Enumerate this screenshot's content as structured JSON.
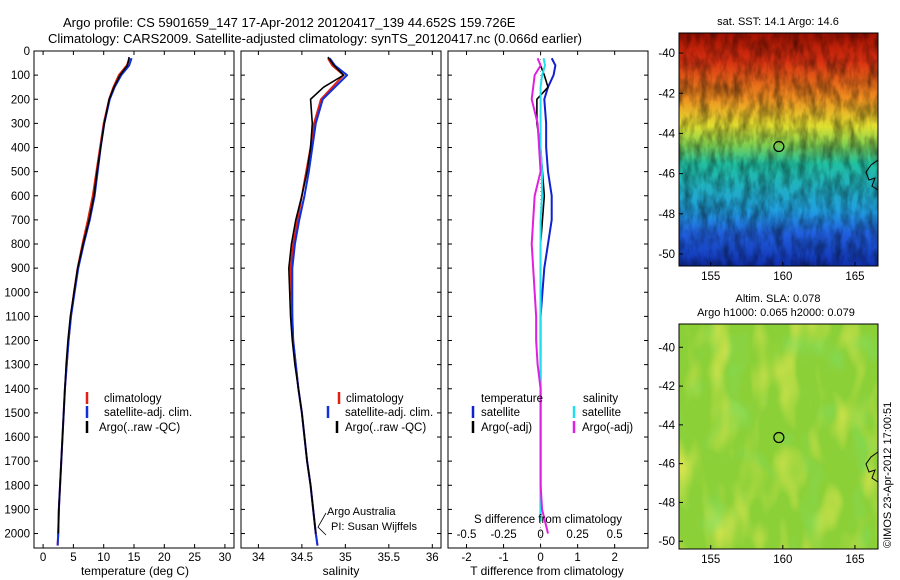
{
  "header": {
    "line1": "Argo profile: CS 5901659_147 17-Apr-2012 20120417_139 44.652S 159.726E",
    "line2": "Climatology: CARS2009. Satellite-adjusted climatology: synTS_20120417.nc (0.066d earlier)"
  },
  "colors": {
    "climatology": "#e02010",
    "satellite_adj": "#1030e0",
    "argo": "#000000",
    "temp_satellite": "#1020d0",
    "sal_satellite": "#20e0f0",
    "sal_argo_adj": "#e020e0"
  },
  "chart_data": [
    {
      "id": "temperature",
      "type": "line",
      "xlabel": "temperature (deg C)",
      "ylabel": "",
      "xlim": [
        -1.5,
        31.5
      ],
      "ylim": [
        2060,
        0
      ],
      "xticks": [
        0,
        5,
        10,
        15,
        20,
        25,
        30
      ],
      "yticks": [
        0,
        100,
        200,
        300,
        400,
        500,
        600,
        700,
        800,
        900,
        1000,
        1100,
        1200,
        1300,
        1400,
        1500,
        1600,
        1700,
        1800,
        1900,
        2000
      ],
      "legend": {
        "placement": "lower-middle",
        "entries": [
          "climatology",
          "satellite-adj. clim.",
          "Argo(..raw -QC)"
        ]
      },
      "series": [
        {
          "name": "climatology",
          "color_key": "climatology",
          "depth": [
            30,
            60,
            100,
            150,
            200,
            300,
            400,
            500,
            600,
            700,
            800,
            900,
            1000,
            1100,
            1200,
            1300,
            1400,
            1500,
            1600,
            1700,
            1800,
            1900,
            2000,
            2050
          ],
          "values": [
            14.3,
            13.8,
            12.5,
            11.6,
            10.9,
            10.0,
            9.4,
            8.8,
            8.2,
            7.4,
            6.5,
            5.7,
            5.1,
            4.6,
            4.2,
            3.9,
            3.6,
            3.4,
            3.2,
            3.0,
            2.8,
            2.6,
            2.5,
            2.4
          ]
        },
        {
          "name": "satellite-adj. clim.",
          "color_key": "satellite_adj",
          "depth": [
            30,
            60,
            100,
            150,
            200,
            300,
            400,
            500,
            600,
            700,
            800,
            900,
            1000,
            1100,
            1200,
            1300,
            1400,
            1500,
            1600,
            1700,
            1800,
            1900,
            2000,
            2050
          ],
          "values": [
            14.6,
            14.2,
            12.9,
            11.8,
            11.0,
            10.1,
            9.5,
            9.0,
            8.5,
            7.7,
            6.7,
            5.8,
            5.2,
            4.6,
            4.2,
            3.9,
            3.6,
            3.4,
            3.2,
            3.0,
            2.8,
            2.6,
            2.5,
            2.4
          ]
        },
        {
          "name": "Argo(..raw -QC)",
          "color_key": "argo",
          "depth": [
            25,
            60,
            100,
            150,
            200,
            300,
            400,
            500,
            600,
            700,
            800,
            900,
            1000,
            1100,
            1200,
            1300,
            1400,
            1500,
            1600,
            1700,
            1800,
            1900,
            2000
          ],
          "values": [
            14.2,
            13.9,
            12.7,
            11.7,
            10.9,
            10.1,
            9.5,
            8.9,
            8.4,
            7.6,
            6.6,
            5.7,
            5.1,
            4.5,
            4.1,
            3.8,
            3.6,
            3.4,
            3.2,
            3.0,
            2.8,
            2.6,
            2.5
          ]
        }
      ]
    },
    {
      "id": "salinity",
      "type": "line",
      "xlabel": "salinity",
      "ylabel": "",
      "xlim": [
        33.8,
        36.1
      ],
      "ylim": [
        2060,
        0
      ],
      "xticks": [
        34,
        34.5,
        35,
        35.5,
        36
      ],
      "legend": {
        "placement": "lower-right",
        "entries": [
          "climatology",
          "satellite-adj. clim.",
          "Argo(..raw -QC)"
        ]
      },
      "annotation": [
        "Argo Australia",
        "PI: Susan Wijffels"
      ],
      "series": [
        {
          "name": "climatology",
          "color_key": "climatology",
          "depth": [
            30,
            60,
            100,
            150,
            200,
            300,
            400,
            500,
            600,
            700,
            800,
            900,
            1000,
            1100,
            1200,
            1300,
            1400,
            1500,
            1600,
            1700,
            1800,
            1900,
            2000,
            2050
          ],
          "values": [
            34.8,
            34.85,
            34.98,
            34.85,
            34.72,
            34.64,
            34.6,
            34.55,
            34.5,
            34.45,
            34.4,
            34.37,
            34.38,
            34.39,
            34.4,
            34.43,
            34.46,
            34.5,
            34.53,
            34.56,
            34.6,
            34.63,
            34.66,
            34.68
          ]
        },
        {
          "name": "satellite-adj. clim.",
          "color_key": "satellite_adj",
          "depth": [
            30,
            60,
            100,
            150,
            200,
            300,
            400,
            500,
            600,
            700,
            800,
            900,
            1000,
            1100,
            1200,
            1300,
            1400,
            1500,
            1600,
            1700,
            1800,
            1900,
            2000,
            2050
          ],
          "values": [
            34.82,
            34.88,
            35.02,
            34.88,
            34.74,
            34.66,
            34.62,
            34.58,
            34.53,
            34.47,
            34.42,
            34.39,
            34.39,
            34.39,
            34.4,
            34.43,
            34.46,
            34.5,
            34.53,
            34.56,
            34.6,
            34.63,
            34.66,
            34.68
          ]
        },
        {
          "name": "Argo(..raw -QC)",
          "color_key": "argo",
          "depth": [
            25,
            60,
            100,
            150,
            200,
            300,
            400,
            500,
            600,
            700,
            800,
            900,
            1000,
            1100,
            1200,
            1300,
            1400,
            1500,
            1600,
            1700,
            1800,
            1900,
            2000
          ],
          "values": [
            34.8,
            34.87,
            34.98,
            34.75,
            34.6,
            34.62,
            34.6,
            34.56,
            34.5,
            34.43,
            34.38,
            34.35,
            34.36,
            34.37,
            34.39,
            34.42,
            34.46,
            34.5,
            34.53,
            34.56,
            34.6,
            34.63,
            34.66
          ]
        }
      ]
    },
    {
      "id": "difference",
      "type": "line",
      "xlabel": "T difference from climatology",
      "xlabel2": "S difference from climatology",
      "xlim": [
        -2.5,
        2.9
      ],
      "ylim": [
        2060,
        0
      ],
      "xticks": [
        -2,
        -1,
        0,
        1,
        2
      ],
      "xticks_labels": [
        "-2",
        "-1",
        "0",
        "1",
        "2"
      ],
      "xticks2": [
        -0.5,
        -0.25,
        0,
        0.25,
        0.5
      ],
      "legend": {
        "placement": "lower-middle",
        "temperature_heading": "temperature",
        "salinity_heading": "salinity",
        "temperature_entries": [
          "satellite",
          "Argo(-adj)"
        ],
        "salinity_entries": [
          "satellite",
          "Argo(-adj)"
        ]
      },
      "series": [
        {
          "name": "satellite",
          "group": "temperature",
          "color_key": "temp_satellite",
          "depth": [
            30,
            60,
            100,
            150,
            200,
            300,
            400,
            500,
            600,
            700,
            800,
            900,
            1000,
            1100,
            1200,
            1300,
            1400,
            1500,
            1600,
            1700,
            1800,
            1900,
            1950
          ],
          "values": [
            0.3,
            0.4,
            0.35,
            0.2,
            0.1,
            0.15,
            0.15,
            0.2,
            0.3,
            0.3,
            0.2,
            0.1,
            0.05,
            0.0,
            0.0,
            0.0,
            0.0,
            0.0,
            0.0,
            0.0,
            0.0,
            0.0,
            0.0
          ]
        },
        {
          "name": "Argo(-adj)",
          "group": "temperature",
          "color_key": "argo",
          "depth": [
            60,
            100,
            150,
            200,
            300,
            400,
            500,
            600,
            700,
            800,
            900,
            1000,
            1100,
            1200,
            1300,
            1400,
            1500,
            1600,
            1700,
            1800,
            1900,
            1950
          ],
          "values": [
            0.0,
            0.1,
            0.2,
            -0.1,
            -0.1,
            0.0,
            0.05,
            0.1,
            0.05,
            0.0,
            0.0,
            0.0,
            0.0,
            0.0,
            0.0,
            0.0,
            0.0,
            0.0,
            0.0,
            0.0,
            0.0,
            0.0
          ]
        },
        {
          "name": "satellite",
          "group": "salinity",
          "color_key": "sal_satellite",
          "depth": [
            30,
            60,
            100,
            150,
            200,
            300,
            400,
            500,
            600,
            700,
            800,
            900,
            1000,
            1100,
            1200,
            1300,
            1400,
            1500,
            1600,
            1700,
            1800,
            1900,
            1950
          ],
          "values": [
            0.02,
            0.03,
            0.01,
            0.0,
            0.0,
            0.0,
            0.0,
            0.01,
            0.01,
            0.0,
            0.0,
            0.0,
            0.0,
            0.0,
            0.0,
            0.0,
            0.0,
            0.0,
            0.0,
            0.0,
            0.0,
            0.0,
            0.0
          ]
        },
        {
          "name": "Argo(-adj)",
          "group": "salinity",
          "color_key": "sal_argo_adj",
          "depth": [
            30,
            60,
            100,
            150,
            200,
            300,
            400,
            500,
            600,
            700,
            800,
            900,
            1000,
            1100,
            1200,
            1300,
            1400,
            1500,
            1600,
            1700,
            1800,
            1900,
            2000
          ],
          "values": [
            -0.02,
            0.0,
            -0.04,
            -0.05,
            -0.06,
            -0.02,
            -0.01,
            0.0,
            -0.04,
            -0.05,
            -0.06,
            -0.05,
            -0.04,
            -0.03,
            -0.03,
            -0.02,
            0.0,
            0.0,
            0.0,
            0.0,
            0.0,
            0.01,
            0.05
          ]
        }
      ]
    },
    {
      "id": "sst_map",
      "type": "heatmap",
      "title": "sat. SST: 14.1 Argo: 14.6",
      "xlim": [
        152.8,
        166.6
      ],
      "ylim": [
        -50.6,
        -39.0
      ],
      "xticks": [
        155,
        160,
        165
      ],
      "yticks": [
        -40,
        -42,
        -44,
        -46,
        -48,
        -50
      ],
      "marker": {
        "lon": 159.726,
        "lat": -44.652
      }
    },
    {
      "id": "sla_map",
      "type": "heatmap",
      "title_line1": "Altim. SLA: 0.078",
      "title_line2": "Argo h1000: 0.065 h2000: 0.079",
      "xlim": [
        152.8,
        166.6
      ],
      "ylim": [
        -50.4,
        -38.8
      ],
      "xticks": [
        155,
        160,
        165
      ],
      "yticks": [
        -40,
        -42,
        -44,
        -46,
        -48,
        -50
      ],
      "marker": {
        "lon": 159.726,
        "lat": -44.652
      }
    }
  ],
  "watermark": "©IMOS 23-Apr-2012 17:00:51"
}
